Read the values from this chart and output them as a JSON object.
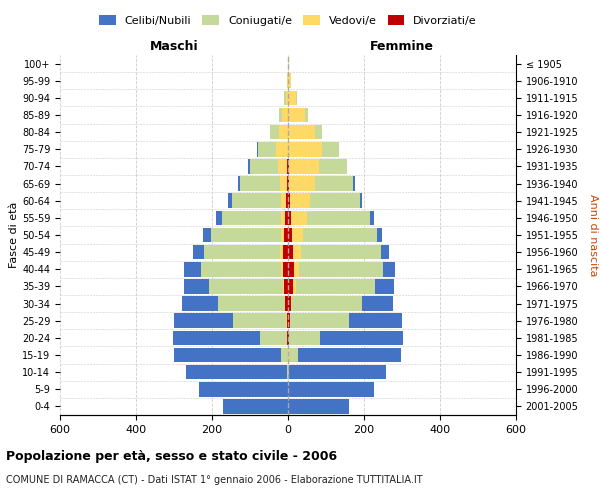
{
  "age_groups": [
    "0-4",
    "5-9",
    "10-14",
    "15-19",
    "20-24",
    "25-29",
    "30-34",
    "35-39",
    "40-44",
    "45-49",
    "50-54",
    "55-59",
    "60-64",
    "65-69",
    "70-74",
    "75-79",
    "80-84",
    "85-89",
    "90-94",
    "95-99",
    "100+"
  ],
  "birth_years": [
    "2001-2005",
    "1996-2000",
    "1991-1995",
    "1986-1990",
    "1981-1985",
    "1976-1980",
    "1971-1975",
    "1966-1970",
    "1961-1965",
    "1956-1960",
    "1951-1955",
    "1946-1950",
    "1941-1945",
    "1936-1940",
    "1931-1935",
    "1926-1930",
    "1921-1925",
    "1916-1920",
    "1911-1915",
    "1906-1910",
    "≤ 1905"
  ],
  "males": {
    "celibi": [
      170,
      235,
      265,
      280,
      230,
      155,
      95,
      65,
      45,
      30,
      20,
      15,
      10,
      6,
      4,
      2,
      1,
      0,
      0,
      0,
      0
    ],
    "coniugati": [
      0,
      0,
      3,
      18,
      70,
      140,
      175,
      195,
      210,
      200,
      185,
      155,
      130,
      105,
      75,
      48,
      22,
      10,
      4,
      1,
      0
    ],
    "vedovi": [
      0,
      0,
      0,
      0,
      1,
      2,
      2,
      3,
      5,
      6,
      8,
      12,
      14,
      18,
      24,
      30,
      25,
      15,
      6,
      2,
      0
    ],
    "divorziati": [
      0,
      0,
      0,
      1,
      2,
      3,
      7,
      10,
      13,
      14,
      10,
      7,
      4,
      3,
      2,
      1,
      0,
      0,
      0,
      0,
      0
    ]
  },
  "females": {
    "nubili": [
      160,
      225,
      255,
      270,
      220,
      140,
      80,
      50,
      32,
      22,
      14,
      10,
      6,
      4,
      2,
      1,
      0,
      0,
      0,
      0,
      0
    ],
    "coniugate": [
      0,
      0,
      3,
      25,
      80,
      155,
      185,
      210,
      220,
      210,
      195,
      165,
      130,
      100,
      72,
      44,
      20,
      8,
      3,
      1,
      0
    ],
    "vedove": [
      0,
      0,
      0,
      1,
      1,
      2,
      4,
      8,
      14,
      20,
      28,
      42,
      55,
      68,
      80,
      88,
      70,
      44,
      20,
      7,
      2
    ],
    "divorziate": [
      0,
      0,
      0,
      1,
      2,
      4,
      7,
      12,
      16,
      14,
      11,
      8,
      4,
      3,
      2,
      1,
      0,
      0,
      0,
      0,
      0
    ]
  },
  "colors": {
    "celibi_nubili": "#4472C4",
    "coniugati": "#C5D99A",
    "vedovi": "#FFD966",
    "divorziati": "#C00000"
  },
  "xlim": 600,
  "xticks": [
    -600,
    -400,
    -200,
    0,
    200,
    400,
    600
  ],
  "title": "Popolazione per età, sesso e stato civile - 2006",
  "subtitle": "COMUNE DI RAMACCA (CT) - Dati ISTAT 1° gennaio 2006 - Elaborazione TUTTITALIA.IT",
  "ylabel_left": "Fasce di età",
  "ylabel_right": "Anni di nascita",
  "xlabel_left": "Maschi",
  "xlabel_right": "Femmine",
  "legend_labels": [
    "Celibi/Nubili",
    "Coniugati/e",
    "Vedovi/e",
    "Divorziati/e"
  ],
  "background_color": "#ffffff",
  "grid_color": "#cccccc"
}
